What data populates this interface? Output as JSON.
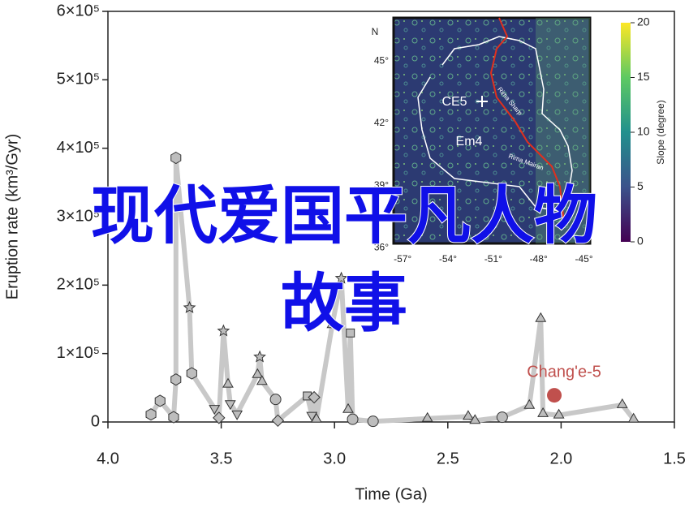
{
  "chart_data": {
    "type": "line",
    "xlabel": "Time (Ga)",
    "ylabel": "Eruption rate (km³/Gyr)",
    "xlim": [
      4.0,
      1.5
    ],
    "xticks": [
      {
        "value": 4,
        "label": "4.0"
      },
      3.5,
      {
        "value": 3,
        "label": "3.0"
      },
      2.5,
      {
        "value": 2,
        "label": "2.0"
      },
      1.5
    ],
    "ylim": [
      0,
      600000
    ],
    "yticks": [
      0,
      {
        "value": 100000,
        "label": "1×10⁵"
      },
      {
        "value": 200000,
        "label": "2×10⁵"
      },
      {
        "value": 300000,
        "label": "3×10⁵"
      },
      {
        "value": 400000,
        "label": "4×10⁵"
      },
      {
        "value": 500000,
        "label": "5×10⁵"
      },
      {
        "value": 600000,
        "label": "6×10⁵"
      }
    ],
    "line_color": "#c8c8c8",
    "series": [
      {
        "color": "#c8c8c8",
        "x": [
          3.81,
          3.77,
          3.71,
          3.7,
          3.7,
          3.64,
          3.63,
          3.53,
          3.51,
          3.49,
          3.47,
          3.46,
          3.43,
          3.34,
          3.33,
          3.32,
          3.26,
          3.25,
          3.12,
          3.1,
          3.09,
          3.08,
          3.01,
          2.97,
          2.94,
          2.93,
          2.92,
          2.83,
          2.59,
          2.41,
          2.38,
          2.26,
          2.14,
          2.09,
          2.08,
          2.01,
          1.73,
          1.68
        ],
        "values": [
          11000,
          31000,
          7000,
          62000,
          386000,
          167000,
          71000,
          20000,
          6000,
          133000,
          55000,
          27000,
          12000,
          69000,
          95000,
          59000,
          33000,
          2000,
          38000,
          10000,
          36000,
          4000,
          142000,
          210000,
          18000,
          130000,
          4000,
          1000,
          5000,
          8000,
          2000,
          7000,
          24000,
          151000,
          12000,
          10000,
          25000,
          4000
        ],
        "markers": [
          "hexagon",
          "hexagon",
          "hexagon",
          "hexagon",
          "hexagon",
          "star",
          "hexagon",
          "triangle-down",
          "diamond",
          "star",
          "triangle-up",
          "triangle-down",
          "triangle-down",
          "triangle-up",
          "star",
          "triangle-up",
          "circle",
          "diamond",
          "square",
          "triangle-down",
          "diamond",
          "triangle-up",
          "triangle-up",
          "star",
          "triangle-up",
          "square",
          "circle",
          "circle",
          "triangle-up",
          "triangle-up",
          "triangle-up",
          "circle",
          "triangle-up",
          "triangle-up",
          "triangle-up",
          "triangle-up",
          "triangle-up",
          "triangle-up"
        ]
      },
      {
        "name": "Chang'e-5",
        "color": "#c0504d",
        "x": [
          2.03
        ],
        "values": [
          39000
        ]
      }
    ]
  },
  "inset": {
    "north": "N",
    "latlim": [
      36.2,
      47.1
    ],
    "lonlim": [
      -57.6,
      -44.6
    ],
    "lat_ticks": [
      {
        "value": 45,
        "label": "45°"
      },
      {
        "value": 42,
        "label": "42°"
      },
      {
        "value": 39,
        "label": "39°"
      },
      {
        "value": 36,
        "label": "36°"
      }
    ],
    "lon_ticks": [
      {
        "value": -57,
        "label": "-57°"
      },
      {
        "value": -54,
        "label": "-54°"
      },
      {
        "value": -51,
        "label": "-51°"
      },
      {
        "value": -48,
        "label": "-48°"
      },
      {
        "value": -45,
        "label": "-45°"
      }
    ],
    "site_label": "CE5",
    "unit_label": "Em4",
    "rille_1": "Rima Sharp",
    "rille_2": "Rima Mairan",
    "colorbar": {
      "label": "Slope (degree)",
      "clim": [
        0,
        20
      ],
      "ticks": [
        0,
        5,
        10,
        15,
        20
      ]
    }
  },
  "overlay_text": [
    "现代爱国平凡人物",
    "故事"
  ]
}
